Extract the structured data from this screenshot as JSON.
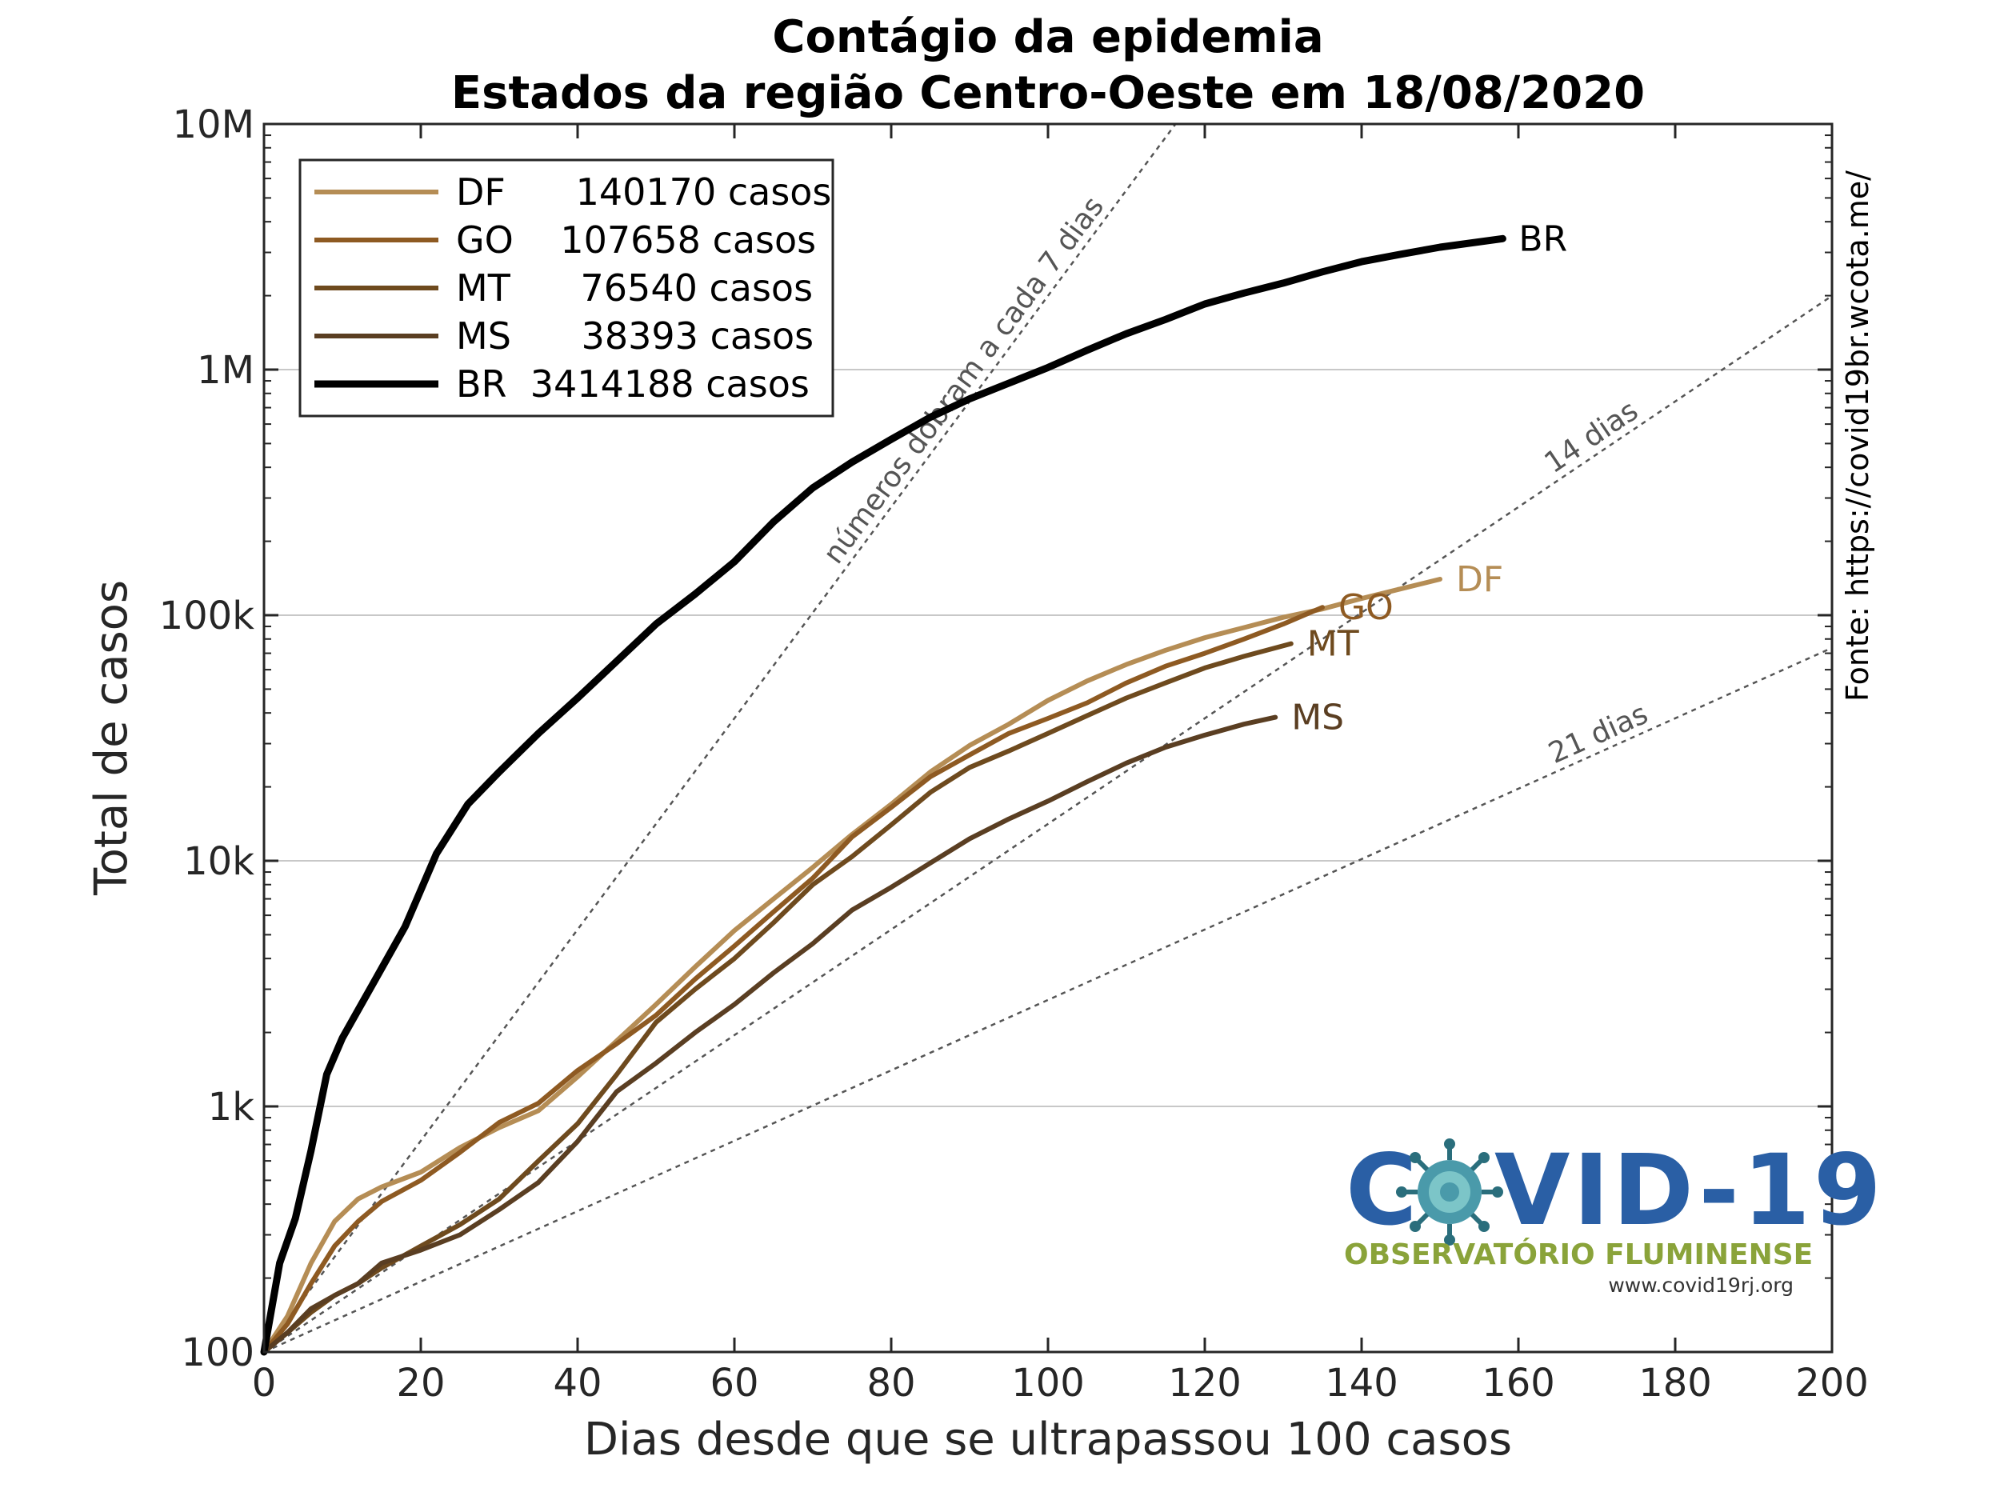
{
  "chart_data": {
    "type": "line",
    "title": "Contágio da epidemia",
    "subtitle": "Estados da região Centro-Oeste em 18/08/2020",
    "xlabel": "Dias desde que se ultrapassou 100 casos",
    "ylabel": "Total de casos",
    "y_scale": "log",
    "xlim": [
      0,
      200
    ],
    "ylim": [
      100,
      10000000
    ],
    "x_ticks": [
      0,
      20,
      40,
      60,
      80,
      100,
      120,
      140,
      160,
      180,
      200
    ],
    "y_ticks": [
      {
        "value": 100,
        "label": "100"
      },
      {
        "value": 1000,
        "label": "1k"
      },
      {
        "value": 10000,
        "label": "10k"
      },
      {
        "value": 100000,
        "label": "100k"
      },
      {
        "value": 1000000,
        "label": "1M"
      },
      {
        "value": 10000000,
        "label": "10M"
      }
    ],
    "grid": "horizontal",
    "legend_position": "top-left",
    "source": "Fonte: https://covid19br.wcota.me/",
    "reference_lines": [
      {
        "label": "números dobram a cada 7 dias",
        "doubling_days": 7
      },
      {
        "label": "14 dias",
        "doubling_days": 14
      },
      {
        "label": "21 dias",
        "doubling_days": 21
      }
    ],
    "series": [
      {
        "name": "DF",
        "legend_label": "DF      140170 casos",
        "color": "#b58d55",
        "width": 6,
        "x": [
          0,
          3,
          6,
          9,
          12,
          15,
          20,
          25,
          30,
          35,
          40,
          45,
          50,
          55,
          60,
          65,
          70,
          75,
          80,
          85,
          90,
          95,
          100,
          105,
          110,
          115,
          120,
          125,
          130,
          135,
          140,
          145,
          150
        ],
        "y": [
          100,
          140,
          230,
          340,
          420,
          470,
          540,
          680,
          820,
          960,
          1320,
          1850,
          2600,
          3700,
          5200,
          7000,
          9400,
          12800,
          17000,
          23000,
          29500,
          36000,
          45000,
          54000,
          63000,
          72000,
          81000,
          89000,
          98000,
          106000,
          117000,
          128000,
          140170
        ]
      },
      {
        "name": "GO",
        "legend_label": "GO    107658 casos",
        "color": "#8e5a22",
        "width": 6,
        "x": [
          0,
          3,
          6,
          9,
          12,
          15,
          20,
          25,
          30,
          35,
          40,
          45,
          50,
          55,
          60,
          65,
          70,
          75,
          80,
          85,
          90,
          95,
          100,
          105,
          110,
          115,
          120,
          125,
          130,
          135
        ],
        "y": [
          100,
          130,
          190,
          270,
          340,
          410,
          500,
          650,
          860,
          1030,
          1400,
          1800,
          2350,
          3300,
          4500,
          6200,
          8500,
          12500,
          16500,
          22000,
          27000,
          33000,
          38000,
          44000,
          53000,
          62000,
          70000,
          80000,
          92000,
          107658
        ]
      },
      {
        "name": "MT",
        "legend_label": "MT      76540 casos",
        "color": "#6e4a1e",
        "width": 6,
        "x": [
          0,
          3,
          6,
          9,
          12,
          15,
          20,
          25,
          30,
          35,
          40,
          45,
          50,
          55,
          60,
          65,
          70,
          75,
          80,
          85,
          90,
          95,
          100,
          105,
          110,
          115,
          120,
          125,
          131
        ],
        "y": [
          100,
          120,
          145,
          170,
          190,
          220,
          270,
          330,
          420,
          600,
          850,
          1350,
          2200,
          3000,
          4000,
          5600,
          8000,
          10400,
          14000,
          19000,
          24000,
          28000,
          33000,
          39000,
          46000,
          53000,
          61000,
          68000,
          76540
        ]
      },
      {
        "name": "MS",
        "legend_label": "MS      38393 casos",
        "color": "#5a3e22",
        "width": 6,
        "x": [
          0,
          3,
          6,
          9,
          12,
          15,
          20,
          25,
          30,
          35,
          40,
          45,
          50,
          55,
          60,
          65,
          70,
          75,
          80,
          85,
          90,
          95,
          100,
          105,
          110,
          115,
          120,
          125,
          129
        ],
        "y": [
          100,
          120,
          150,
          170,
          190,
          230,
          260,
          300,
          380,
          490,
          720,
          1150,
          1500,
          2000,
          2600,
          3500,
          4600,
          6300,
          7800,
          9800,
          12300,
          14800,
          17500,
          21000,
          25000,
          29000,
          32500,
          36000,
          38393
        ]
      },
      {
        "name": "BR",
        "legend_label": "BR  3414188 casos",
        "color": "#000000",
        "width": 9,
        "x": [
          0,
          2,
          4,
          6,
          8,
          10,
          14,
          18,
          22,
          26,
          30,
          35,
          40,
          45,
          50,
          55,
          60,
          65,
          70,
          75,
          80,
          85,
          90,
          95,
          100,
          105,
          110,
          115,
          120,
          125,
          130,
          135,
          140,
          145,
          150,
          158
        ],
        "y": [
          100,
          230,
          350,
          660,
          1350,
          1900,
          3200,
          5400,
          10700,
          17000,
          23000,
          33000,
          46000,
          65000,
          92000,
          122000,
          165000,
          240000,
          330000,
          420000,
          520000,
          640000,
          760000,
          880000,
          1020000,
          1200000,
          1400000,
          1600000,
          1850000,
          2050000,
          2250000,
          2500000,
          2750000,
          2950000,
          3150000,
          3414188
        ]
      }
    ]
  },
  "logo": {
    "brand_left": "C",
    "brand_right": "VID-19",
    "subtitle": "OBSERVATÓRIO FLUMINENSE",
    "url": "www.covid19rj.org"
  }
}
